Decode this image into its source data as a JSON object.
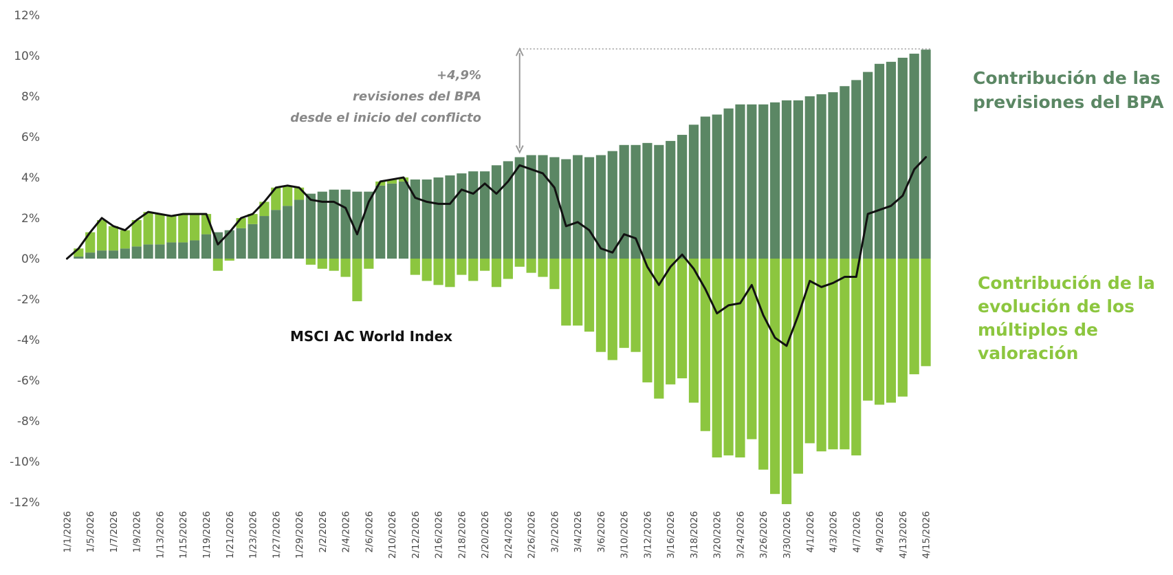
{
  "chart_data": {
    "type": "bar",
    "stacked": true,
    "x": [
      "1/1/2026",
      "1/2/2026",
      "1/5/2026",
      "1/6/2026",
      "1/7/2026",
      "1/8/2026",
      "1/9/2026",
      "1/12/2026",
      "1/13/2026",
      "1/14/2026",
      "1/15/2026",
      "1/16/2026",
      "1/19/2026",
      "1/20/2026",
      "1/21/2026",
      "1/22/2026",
      "1/23/2026",
      "1/26/2026",
      "1/27/2026",
      "1/28/2026",
      "1/29/2026",
      "1/30/2026",
      "2/2/2026",
      "2/3/2026",
      "2/4/2026",
      "2/5/2026",
      "2/6/2026",
      "2/9/2026",
      "2/10/2026",
      "2/11/2026",
      "2/12/2026",
      "2/13/2026",
      "2/16/2026",
      "2/17/2026",
      "2/18/2026",
      "2/19/2026",
      "2/20/2026",
      "2/23/2026",
      "2/24/2026",
      "2/25/2026",
      "2/26/2026",
      "2/27/2026",
      "3/2/2026",
      "3/3/2026",
      "3/4/2026",
      "3/5/2026",
      "3/6/2026",
      "3/9/2026",
      "3/10/2026",
      "3/11/2026",
      "3/12/2026",
      "3/13/2026",
      "3/16/2026",
      "3/17/2026",
      "3/18/2026",
      "3/19/2026",
      "3/20/2026",
      "3/23/2026",
      "3/24/2026",
      "3/25/2026",
      "3/26/2026",
      "3/27/2026",
      "3/30/2026",
      "3/31/2026",
      "4/1/2026",
      "4/2/2026",
      "4/3/2026",
      "4/6/2026",
      "4/7/2026",
      "4/8/2026",
      "4/9/2026",
      "4/10/2026",
      "4/13/2026",
      "4/14/2026",
      "4/15/2026"
    ],
    "x_tick_labels": [
      "1/1/2026",
      "1/5/2026",
      "1/7/2026",
      "1/9/2026",
      "1/13/2026",
      "1/15/2026",
      "1/19/2026",
      "1/21/2026",
      "1/23/2026",
      "1/27/2026",
      "1/29/2026",
      "2/2/2026",
      "2/4/2026",
      "2/6/2026",
      "2/10/2026",
      "2/12/2026",
      "2/16/2026",
      "2/18/2026",
      "2/20/2026",
      "2/24/2026",
      "2/26/2026",
      "3/2/2026",
      "3/4/2026",
      "3/6/2026",
      "3/10/2026",
      "3/12/2026",
      "3/16/2026",
      "3/18/2026",
      "3/20/2026",
      "3/24/2026",
      "3/26/2026",
      "3/30/2026",
      "4/1/2026",
      "4/3/2026",
      "4/7/2026",
      "4/9/2026",
      "4/13/2026",
      "4/15/2026"
    ],
    "series": [
      {
        "name": "Contribución de las previsiones del BPA",
        "type": "bar",
        "color": "#5b8764",
        "values": [
          0,
          0.1,
          0.3,
          0.4,
          0.4,
          0.5,
          0.6,
          0.7,
          0.7,
          0.8,
          0.8,
          0.9,
          1.2,
          1.3,
          1.4,
          1.5,
          1.7,
          2.1,
          2.4,
          2.6,
          2.9,
          3.2,
          3.3,
          3.4,
          3.4,
          3.3,
          3.3,
          3.6,
          3.7,
          3.8,
          3.9,
          3.9,
          4.0,
          4.1,
          4.2,
          4.3,
          4.3,
          4.6,
          4.8,
          5.0,
          5.1,
          5.1,
          5.0,
          4.9,
          5.1,
          5.0,
          5.1,
          5.3,
          5.6,
          5.6,
          5.7,
          5.6,
          5.8,
          6.1,
          6.6,
          7.0,
          7.1,
          7.4,
          7.6,
          7.6,
          7.6,
          7.7,
          7.8,
          7.8,
          8.0,
          8.1,
          8.2,
          8.5,
          8.8,
          9.2,
          9.6,
          9.7,
          9.9,
          10.1,
          10.3
        ]
      },
      {
        "name": "Contribución de la evolución de los múltiplos de valoración",
        "type": "bar",
        "color": "#8cc63f",
        "values": [
          0,
          0.4,
          1.0,
          1.5,
          1.2,
          0.9,
          1.3,
          1.6,
          1.5,
          1.3,
          1.4,
          1.3,
          1.0,
          -0.6,
          -0.1,
          0.5,
          0.5,
          0.7,
          1.1,
          1.0,
          0.6,
          -0.3,
          -0.5,
          -0.6,
          -0.9,
          -2.1,
          -0.5,
          0.2,
          0.2,
          0.2,
          -0.8,
          -1.1,
          -1.3,
          -1.4,
          -0.8,
          -1.1,
          -0.6,
          -1.4,
          -1.0,
          -0.4,
          -0.7,
          -0.9,
          -1.5,
          -3.3,
          -3.3,
          -3.6,
          -4.6,
          -5.0,
          -4.4,
          -4.6,
          -6.1,
          -6.9,
          -6.2,
          -5.9,
          -7.1,
          -8.5,
          -9.8,
          -9.7,
          -9.8,
          -8.9,
          -10.4,
          -11.6,
          -12.1,
          -10.6,
          -9.1,
          -9.5,
          -9.4,
          -9.4,
          -9.7,
          -7.0,
          -7.2,
          -7.1,
          -6.8,
          -5.7,
          -5.3
        ]
      },
      {
        "name": "MSCI AC World Index",
        "type": "line",
        "color": "#111111",
        "values": [
          0,
          0.5,
          1.3,
          2.0,
          1.6,
          1.4,
          1.9,
          2.3,
          2.2,
          2.1,
          2.2,
          2.2,
          2.2,
          0.7,
          1.3,
          2.0,
          2.2,
          2.8,
          3.5,
          3.6,
          3.5,
          2.9,
          2.8,
          2.8,
          2.5,
          1.2,
          2.8,
          3.8,
          3.9,
          4.0,
          3.0,
          2.8,
          2.7,
          2.7,
          3.4,
          3.2,
          3.7,
          3.2,
          3.8,
          4.6,
          4.4,
          4.2,
          3.5,
          1.6,
          1.8,
          1.4,
          0.5,
          0.3,
          1.2,
          1.0,
          -0.4,
          -1.3,
          -0.4,
          0.2,
          -0.5,
          -1.5,
          -2.7,
          -2.3,
          -2.2,
          -1.3,
          -2.8,
          -3.9,
          -4.3,
          -2.8,
          -1.1,
          -1.4,
          -1.2,
          -0.9,
          -0.9,
          2.2,
          2.4,
          2.6,
          3.1,
          4.4,
          5.0
        ]
      }
    ],
    "ylim": [
      -12,
      12
    ],
    "y_ticks": [
      -12,
      -10,
      -8,
      -6,
      -4,
      -2,
      0,
      2,
      4,
      6,
      8,
      10,
      12
    ],
    "y_tick_format": "percent",
    "grid": false,
    "title": "",
    "xlabel": "",
    "ylabel": ""
  },
  "labels": {
    "legend_eps": [
      "Contribución de las",
      "previsiones del BPA"
    ],
    "legend_multiples": [
      "Contribución de la",
      "evolución de los",
      "múltiplos de",
      "valoración"
    ],
    "index_label": "MSCI AC World Index",
    "annotation": [
      "+4,9%",
      "revisiones del BPA",
      "desde el inicio del conflicto"
    ]
  },
  "colors": {
    "eps": "#5b8764",
    "multiples": "#8cc63f",
    "index": "#111111",
    "annotation": "#999999"
  },
  "annotation_bracket": {
    "from_value": 5.1,
    "to_value": 10.3,
    "start_index": 40,
    "end_index": 74
  }
}
